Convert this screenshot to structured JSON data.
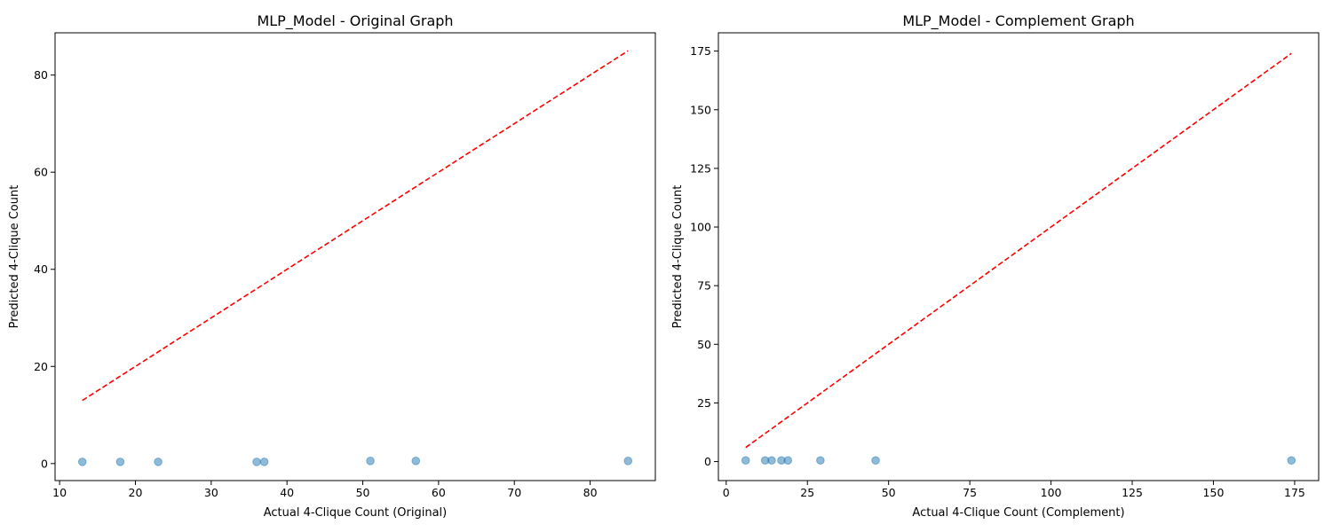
{
  "chart_data": [
    {
      "type": "scatter",
      "title": "MLP_Model - Original Graph",
      "xlabel": "Actual 4-Clique Count (Original)",
      "ylabel": "Predicted 4-Clique Count",
      "xlim": [
        9.4,
        88.6
      ],
      "ylim": [
        -3.5,
        88.7
      ],
      "xticks": [
        10,
        20,
        30,
        40,
        50,
        60,
        70,
        80
      ],
      "yticks": [
        0,
        20,
        40,
        60,
        80
      ],
      "grid": false,
      "series": [
        {
          "kind": "points",
          "color": "#1f77b4",
          "opacity": 0.5,
          "x": [
            13,
            18,
            23,
            36,
            37,
            51,
            57,
            85
          ],
          "y": [
            0.35,
            0.35,
            0.35,
            0.35,
            0.35,
            0.55,
            0.55,
            0.55
          ]
        },
        {
          "kind": "reference-line",
          "color": "#ff0000",
          "dashed": true,
          "x": [
            13,
            85
          ],
          "y": [
            13,
            85
          ]
        }
      ]
    },
    {
      "type": "scatter",
      "title": "MLP_Model - Complement Graph",
      "xlabel": "Actual 4-Clique Count (Complement)",
      "ylabel": "Predicted 4-Clique Count",
      "xlim": [
        -2.4,
        182.4
      ],
      "ylim": [
        -8.1,
        182.8
      ],
      "xticks": [
        0,
        25,
        50,
        75,
        100,
        125,
        150,
        175
      ],
      "yticks": [
        0,
        25,
        50,
        75,
        100,
        125,
        150,
        175
      ],
      "grid": false,
      "series": [
        {
          "kind": "points",
          "color": "#1f77b4",
          "opacity": 0.5,
          "x": [
            6,
            12,
            14,
            17,
            19,
            29,
            46,
            174
          ],
          "y": [
            0.5,
            0.5,
            0.5,
            0.5,
            0.5,
            0.5,
            0.5,
            0.5
          ]
        },
        {
          "kind": "reference-line",
          "color": "#ff0000",
          "dashed": true,
          "x": [
            6,
            174
          ],
          "y": [
            6,
            174
          ]
        }
      ]
    }
  ]
}
